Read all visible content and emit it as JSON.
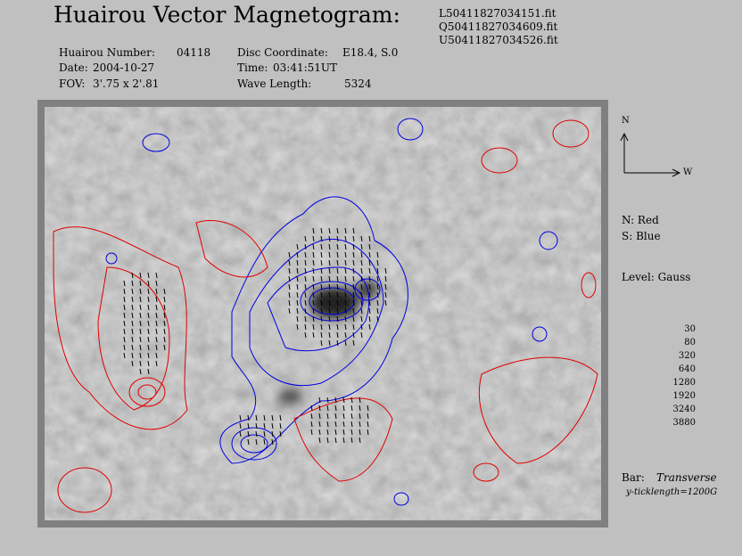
{
  "header": {
    "title": "Huairou Vector Magnetogram:",
    "files": [
      "L50411827034151.fit",
      "Q50411827034609.fit",
      "U50411827034526.fit"
    ]
  },
  "info": {
    "left": [
      {
        "label": "Huairou Number:",
        "value": "04118"
      },
      {
        "label": "Date:",
        "value": "2004-10-27"
      },
      {
        "label": "FOV:",
        "value": "3'.75 x 2'.81"
      }
    ],
    "right": [
      {
        "label": "Disc Coordinate:",
        "value": "E18.4, S.0"
      },
      {
        "label": "Time:",
        "value": "03:41:51UT"
      },
      {
        "label": "Wave Length:",
        "value": "5324"
      }
    ]
  },
  "legend": {
    "north": "N",
    "west": "W",
    "polarity": [
      "N: Red",
      "S: Blue"
    ],
    "level_title": "Level: Gauss",
    "levels": [
      30,
      80,
      320,
      640,
      1280,
      1920,
      3240,
      3880
    ],
    "bar_label": "Bar:",
    "bar_type": "Transverse",
    "tick_note": "y-ticklength=1200G"
  }
}
